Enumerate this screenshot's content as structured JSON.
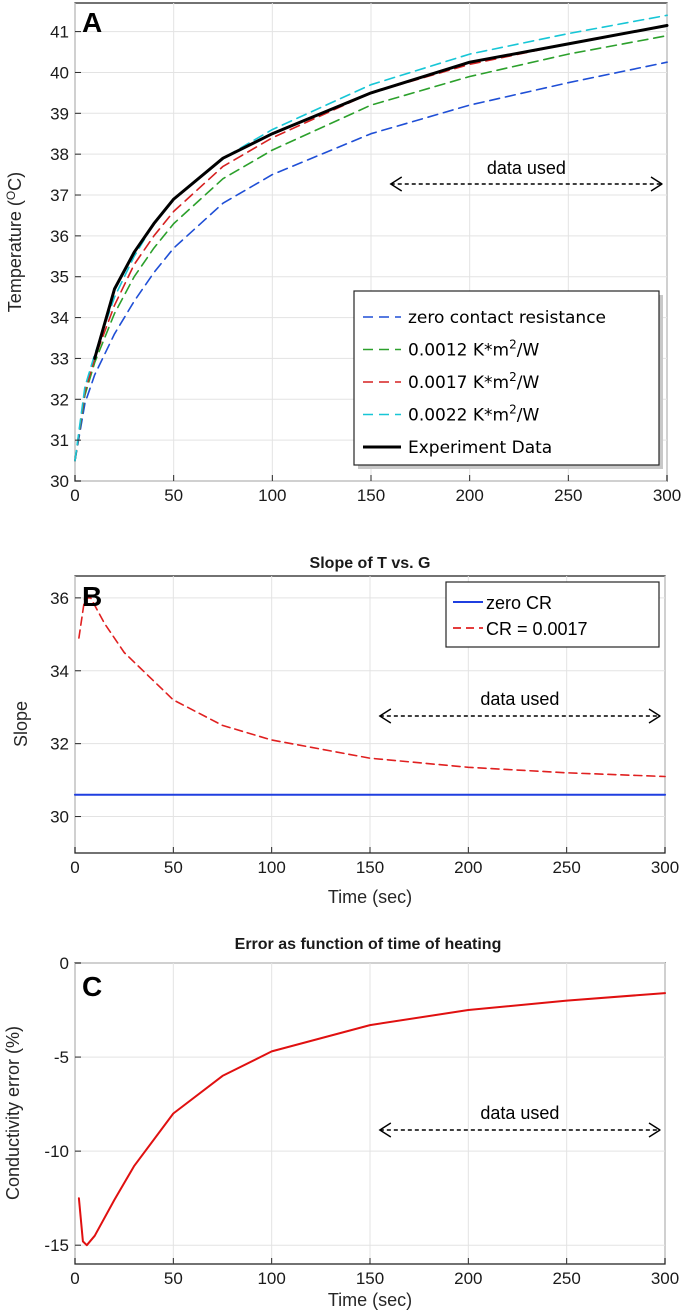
{
  "chart_data": [
    {
      "panel_label": "A",
      "type": "line",
      "title": "",
      "xlabel": "",
      "ylabel": "Temperature (",
      "ylabel_sup": "O",
      "ylabel_tail": "C)",
      "xlim": [
        0,
        300
      ],
      "ylim": [
        30,
        41.7
      ],
      "xticks": [
        "0",
        "50",
        "100",
        "150",
        "200",
        "250",
        "300"
      ],
      "yticks": [
        "30",
        "31",
        "32",
        "33",
        "34",
        "35",
        "36",
        "37",
        "38",
        "39",
        "40",
        "41"
      ],
      "grid": true,
      "legend_position": "bottom-right",
      "annotation": {
        "text": "data used",
        "x_from": 160,
        "x_to": 300
      },
      "series": [
        {
          "label_main": "zero contact resistance",
          "label_sup": "",
          "label_tail": "",
          "color": "#1f4fd6",
          "style": "dashed",
          "x": [
            0,
            5,
            10,
            20,
            30,
            40,
            50,
            75,
            100,
            150,
            200,
            250,
            300
          ],
          "y": [
            30.5,
            31.9,
            32.6,
            33.6,
            34.4,
            35.1,
            35.7,
            36.8,
            37.5,
            38.5,
            39.2,
            39.75,
            40.25
          ]
        },
        {
          "label_main": "0.0012 K*m",
          "label_sup": "2",
          "label_tail": "/W",
          "color": "#2ca02c",
          "style": "dashed",
          "x": [
            0,
            5,
            10,
            20,
            30,
            40,
            50,
            75,
            100,
            150,
            200,
            250,
            300
          ],
          "y": [
            30.5,
            32.1,
            32.9,
            34.1,
            35.0,
            35.7,
            36.3,
            37.4,
            38.1,
            39.2,
            39.9,
            40.45,
            40.9
          ]
        },
        {
          "label_main": "0.0017 K*m",
          "label_sup": "2",
          "label_tail": "/W",
          "color": "#d62020",
          "style": "dashed",
          "x": [
            0,
            5,
            10,
            20,
            30,
            40,
            50,
            75,
            100,
            150,
            200,
            250,
            300
          ],
          "y": [
            30.5,
            32.2,
            33.0,
            34.3,
            35.3,
            36.0,
            36.6,
            37.7,
            38.4,
            39.5,
            40.2,
            40.7,
            41.15
          ]
        },
        {
          "label_main": "0.0022 K*m",
          "label_sup": "2",
          "label_tail": "/W",
          "color": "#17c6d6",
          "style": "dashed",
          "x": [
            0,
            5,
            10,
            20,
            30,
            40,
            50,
            75,
            100,
            150,
            200,
            250,
            300
          ],
          "y": [
            30.5,
            32.3,
            33.1,
            34.5,
            35.5,
            36.3,
            36.9,
            37.9,
            38.6,
            39.7,
            40.45,
            40.95,
            41.4
          ]
        },
        {
          "label_main": "Experiment Data",
          "label_sup": "",
          "label_tail": "",
          "color": "#000000",
          "style": "solid",
          "x": [
            10,
            20,
            30,
            40,
            50,
            75,
            100,
            150,
            200,
            250,
            300
          ],
          "y": [
            33.0,
            34.7,
            35.6,
            36.3,
            36.9,
            37.9,
            38.5,
            39.5,
            40.25,
            40.7,
            41.15
          ]
        }
      ]
    },
    {
      "panel_label": "B",
      "type": "line",
      "title": "Slope of T vs. G",
      "xlabel": "Time (sec)",
      "ylabel": "Slope",
      "xlim": [
        0,
        300
      ],
      "ylim": [
        29,
        36.6
      ],
      "xticks": [
        "0",
        "50",
        "100",
        "150",
        "200",
        "250",
        "300"
      ],
      "yticks": [
        "30",
        "32",
        "34",
        "36"
      ],
      "grid": true,
      "legend_position": "top-right",
      "annotation": {
        "text": "data used",
        "x_from": 155,
        "x_to": 300
      },
      "series": [
        {
          "name": "zero CR",
          "color": "#1f3fe0",
          "style": "solid",
          "x": [
            0,
            300
          ],
          "y": [
            30.6,
            30.6
          ]
        },
        {
          "name": "CR = 0.0017",
          "color": "#e02020",
          "style": "dashed",
          "x": [
            2,
            5,
            8,
            15,
            25,
            50,
            75,
            100,
            150,
            200,
            250,
            300
          ],
          "y": [
            34.9,
            36.0,
            36.0,
            35.3,
            34.5,
            33.2,
            32.5,
            32.1,
            31.6,
            31.35,
            31.2,
            31.1
          ]
        }
      ]
    },
    {
      "panel_label": "C",
      "type": "line",
      "title": "Error as function of time of heating",
      "xlabel": "Time (sec)",
      "ylabel": "Conductivity error (%)",
      "xlim": [
        0,
        300
      ],
      "ylim": [
        -16,
        0
      ],
      "xticks": [
        "0",
        "50",
        "100",
        "150",
        "200",
        "250",
        "300"
      ],
      "yticks": [
        "-15",
        "-10",
        "-5",
        "0"
      ],
      "grid": true,
      "annotation": {
        "text": "data used",
        "x_from": 155,
        "x_to": 300
      },
      "series": [
        {
          "color": "#e01010",
          "style": "solid",
          "x": [
            2,
            4,
            6,
            10,
            20,
            30,
            50,
            75,
            100,
            150,
            200,
            250,
            300
          ],
          "y": [
            -12.5,
            -14.8,
            -15.0,
            -14.5,
            -12.6,
            -10.8,
            -8.0,
            -6.0,
            -4.7,
            -3.3,
            -2.5,
            -2.0,
            -1.6
          ]
        }
      ]
    }
  ]
}
